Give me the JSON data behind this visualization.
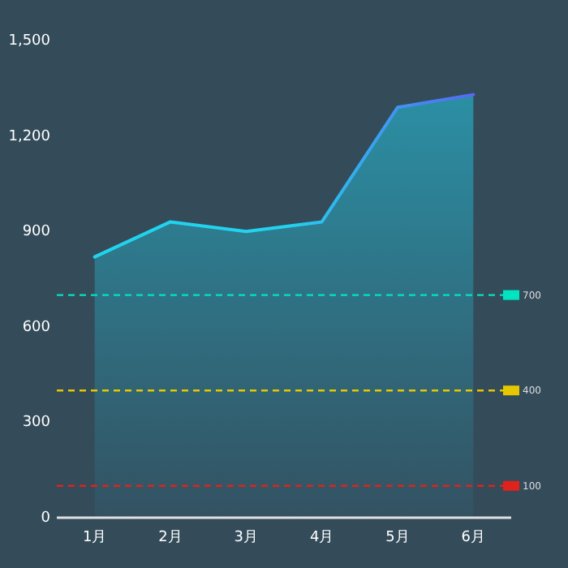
{
  "chart_data": {
    "type": "area",
    "categories": [
      "1月",
      "2月",
      "3月",
      "4月",
      "5月",
      "6月"
    ],
    "series": [
      {
        "color": "#22d3ee",
        "values": [
          820,
          930,
          900,
          930,
          1290,
          1330
        ]
      }
    ],
    "ylim": [
      0,
      1500
    ],
    "yticks": [
      0,
      {
        "value": 300,
        "label": "300"
      },
      {
        "value": 600,
        "label": "600"
      },
      {
        "value": 900,
        "label": "900"
      },
      {
        "value": 1200,
        "label": "1,200"
      },
      {
        "value": 1500,
        "label": "1,500"
      }
    ],
    "ref_lines": [
      {
        "axis": "y",
        "value": 700,
        "label": "700",
        "color": "#00e5c0",
        "line_style": "dashed"
      },
      {
        "axis": "y",
        "value": 400,
        "label": "400",
        "color": "#e6c700",
        "line_style": "dashed"
      },
      {
        "axis": "y",
        "value": 100,
        "label": "100",
        "color": "#e0221c",
        "line_style": "dashed"
      }
    ]
  }
}
